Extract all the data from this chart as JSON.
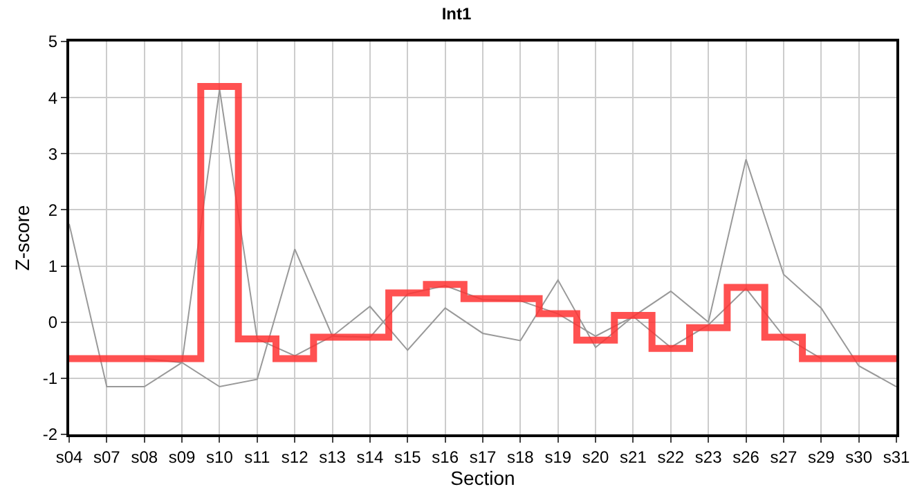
{
  "chart_data": {
    "type": "line",
    "title": "Int1",
    "xlabel": "Section",
    "ylabel": "Z-score",
    "categories": [
      "s04",
      "s07",
      "s08",
      "s09",
      "s10",
      "s11",
      "s12",
      "s13",
      "s14",
      "s15",
      "s16",
      "s17",
      "s18",
      "s19",
      "s20",
      "s21",
      "s22",
      "s23",
      "s26",
      "s27",
      "s29",
      "s30",
      "s31"
    ],
    "ylim": [
      -2,
      5
    ],
    "yticks": [
      -2,
      -1,
      0,
      1,
      2,
      3,
      4,
      5
    ],
    "grid": true,
    "series": [
      {
        "color": "#999999",
        "values": [
          1.75,
          -1.15,
          -1.15,
          -0.72,
          4.15,
          -0.3,
          -0.6,
          -0.25,
          0.28,
          -0.5,
          0.25,
          -0.2,
          -0.33,
          0.75,
          -0.45,
          0.1,
          0.55,
          0,
          2.9,
          0.85,
          0.25,
          -0.78,
          -1.15
        ]
      },
      {
        "color": "#999999",
        "values": [
          null,
          null,
          -0.65,
          -0.72,
          -1.15,
          -1.02,
          1.3,
          -0.25,
          -0.27,
          0.5,
          0.65,
          0.4,
          0.38,
          0.15,
          -0.25,
          0.1,
          -0.45,
          -0.05,
          0.6,
          -0.25,
          -0.65,
          null,
          null
        ]
      },
      {
        "type": "step",
        "color": "#ff3333",
        "values": [
          -0.65,
          -0.65,
          -0.65,
          -0.65,
          4.2,
          -0.3,
          -0.65,
          -0.27,
          -0.27,
          0.52,
          0.67,
          0.42,
          0.42,
          0.15,
          -0.32,
          0.12,
          -0.47,
          -0.1,
          0.62,
          -0.27,
          -0.65,
          -0.65,
          -0.65
        ]
      }
    ]
  }
}
